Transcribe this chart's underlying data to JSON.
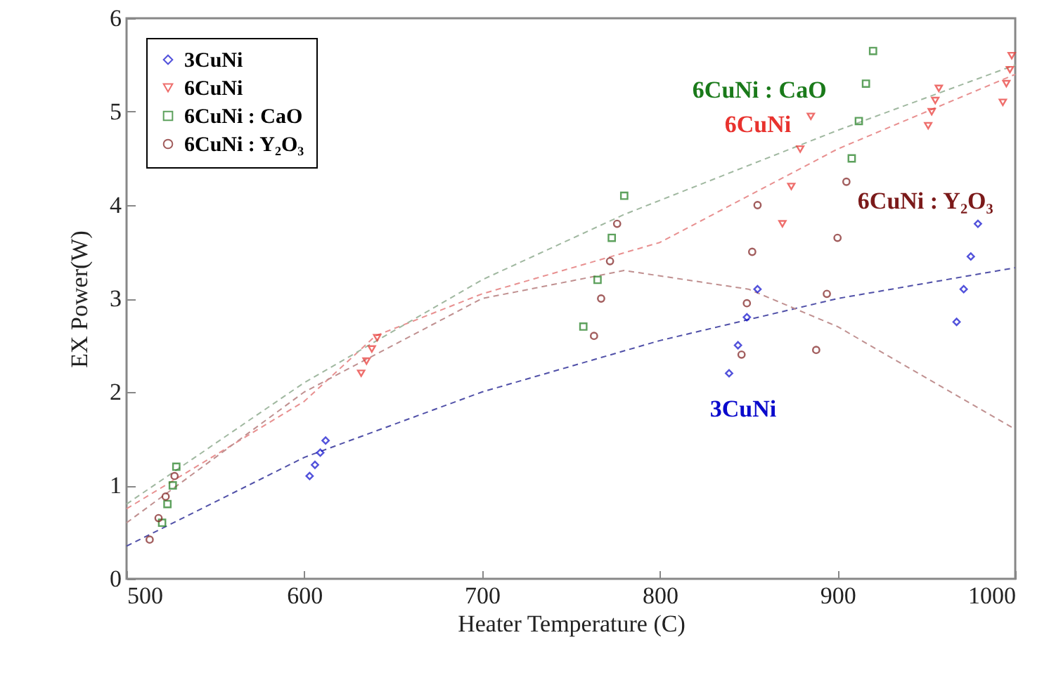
{
  "chart_data": {
    "type": "scatter",
    "xlabel": "Heater Temperature (C)",
    "ylabel": "EX Power(W)",
    "xlim": [
      500,
      1000
    ],
    "ylim": [
      0,
      6
    ],
    "xticks": [
      500,
      600,
      700,
      800,
      900,
      1000
    ],
    "yticks": [
      0,
      1,
      2,
      3,
      4,
      5,
      6
    ],
    "grid": false,
    "legend": "top left",
    "series": [
      {
        "name": "3CuNi",
        "type": "scatter",
        "marker": "diamond",
        "color": "#0a0acc",
        "x": [
          603,
          606,
          609,
          612,
          839,
          844,
          849,
          855,
          967,
          971,
          975,
          979
        ],
        "values": [
          1.1,
          1.22,
          1.35,
          1.48,
          2.2,
          2.5,
          2.8,
          3.1,
          2.75,
          3.1,
          3.45,
          3.8
        ]
      },
      {
        "name": "6CuNi",
        "type": "scatter",
        "marker": "triangle",
        "color": "#e8322e",
        "x": [
          632,
          635,
          638,
          641,
          869,
          874,
          879,
          885,
          951,
          953,
          955,
          957,
          993,
          995,
          997,
          998
        ],
        "values": [
          2.2,
          2.33,
          2.46,
          2.58,
          3.8,
          4.2,
          4.6,
          4.95,
          4.85,
          5.0,
          5.12,
          5.25,
          5.1,
          5.3,
          5.45,
          5.6
        ]
      },
      {
        "name": "6CuNi : CaO",
        "type": "scatter",
        "marker": "square",
        "color": "#1a7a1a",
        "x": [
          520,
          523,
          526,
          528,
          757,
          765,
          773,
          780,
          908,
          912,
          916,
          920
        ],
        "values": [
          0.6,
          0.8,
          1.0,
          1.2,
          2.7,
          3.2,
          3.65,
          4.1,
          4.5,
          4.9,
          5.3,
          5.65
        ]
      },
      {
        "name": "6CuNi : Y₂O₃",
        "type": "scatter",
        "marker": "circle",
        "color": "#7b1a1a",
        "x": [
          513,
          518,
          522,
          527,
          763,
          767,
          772,
          776,
          846,
          849,
          852,
          855,
          888,
          894,
          900,
          905
        ],
        "values": [
          0.42,
          0.65,
          0.88,
          1.1,
          2.6,
          3.0,
          3.4,
          3.8,
          2.4,
          2.95,
          3.5,
          4.0,
          2.45,
          3.05,
          3.65,
          4.25
        ]
      },
      {
        "type": "line",
        "line_style": "dashed",
        "color": "#5050a8",
        "x": [
          500,
          600,
          700,
          800,
          900,
          1000
        ],
        "values": [
          0.35,
          1.3,
          2.0,
          2.55,
          3.0,
          3.33
        ]
      },
      {
        "type": "line",
        "line_style": "dashed",
        "color": "#e89090",
        "x": [
          500,
          600,
          640,
          700,
          800,
          900,
          1000
        ],
        "values": [
          0.75,
          1.9,
          2.6,
          3.05,
          3.6,
          4.6,
          5.4
        ]
      },
      {
        "type": "line",
        "line_style": "dashed",
        "color": "#a0b8a0",
        "x": [
          500,
          600,
          700,
          780,
          900,
          1000
        ],
        "values": [
          0.8,
          2.1,
          3.2,
          3.9,
          4.8,
          5.5
        ]
      },
      {
        "type": "line",
        "line_style": "dashed",
        "color": "#c09090",
        "x": [
          500,
          600,
          700,
          780,
          850,
          900,
          1000
        ],
        "values": [
          0.6,
          2.0,
          3.0,
          3.3,
          3.1,
          2.7,
          1.6
        ]
      }
    ],
    "annotations": [
      {
        "text": "3CuNi",
        "x": 839,
        "y": 2.2
      },
      {
        "text": "6CuNi",
        "x": 885,
        "y": 4.95
      },
      {
        "text": "6CuNi : CaO",
        "x": 916,
        "y": 5.3
      },
      {
        "text": "6CuNi : Y₂O₃",
        "x": 905,
        "y": 4.25
      }
    ]
  }
}
